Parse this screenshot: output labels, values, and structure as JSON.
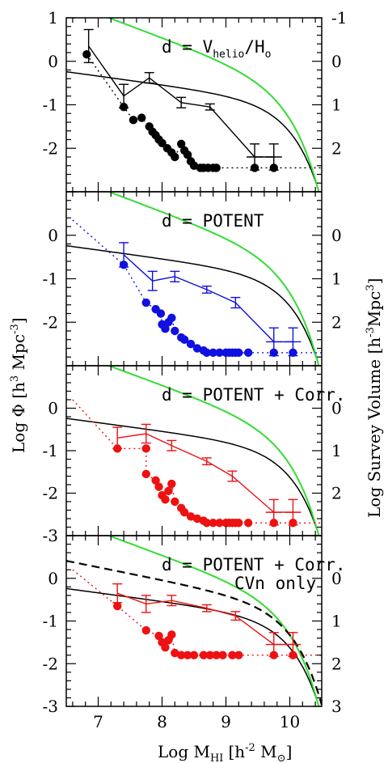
{
  "figure": {
    "xlabel": "Log M",
    "xlabel_sub": "HI",
    "xlabel_unit": "[h",
    "xlabel_unit_sup": "-2",
    "xlabel_unit_end": " M",
    "xlabel_sun_sub": "⊙",
    "xlabel_close": "]",
    "ylabel_left": "Log Φ [h",
    "ylabel_left_sup1": "3",
    "ylabel_left_mid": " Mpc",
    "ylabel_left_sup2": "-3",
    "ylabel_left_close": "]",
    "ylabel_right": "Log Survey Volume   [h",
    "ylabel_right_sup1": "-3",
    "ylabel_right_mid": "Mpc",
    "ylabel_right_sup2": "3",
    "ylabel_right_close": "]",
    "x_ticks": [
      "7",
      "8",
      "9",
      "10"
    ]
  },
  "colors": {
    "schechter_green": "#33dd33",
    "reference_black": "#000000",
    "panel1": "#000000",
    "panel2": "#1010e0",
    "panel3": "#ee1111",
    "panel4": "#ee1111"
  },
  "chart_data": [
    {
      "type": "line",
      "label_main": "d = V",
      "label_sub": "helio",
      "label_mid": "/H",
      "label_sub2": "o",
      "label_line2": "",
      "xlim": [
        6.5,
        10.5
      ],
      "ylim": [
        -3,
        1
      ],
      "y_ticks_left": [
        "1",
        "0",
        "-1",
        "-2"
      ],
      "y_ticks_right": [
        "-1",
        "0",
        "1",
        "2"
      ],
      "phi_points": [
        {
          "x": 6.85,
          "y": 0.35,
          "err": 0.38
        },
        {
          "x": 7.4,
          "y": -0.8,
          "err": 0.27
        },
        {
          "x": 7.8,
          "y": -0.38,
          "err": 0.12
        },
        {
          "x": 8.3,
          "y": -0.95,
          "err": 0.12
        },
        {
          "x": 8.75,
          "y": -1.05,
          "err": 0.07
        },
        {
          "x": 9.45,
          "y": -2.2,
          "err": 0.3
        },
        {
          "x": 9.75,
          "y": -2.2,
          "err": 0.3
        }
      ],
      "volume_points": [
        {
          "x": 6.82,
          "y": 0.16
        },
        {
          "x": 7.4,
          "y": -1.05
        },
        {
          "x": 7.55,
          "y": -1.35
        },
        {
          "x": 7.68,
          "y": -1.3
        },
        {
          "x": 7.8,
          "y": -1.5
        },
        {
          "x": 7.85,
          "y": -1.62
        },
        {
          "x": 7.9,
          "y": -1.7
        },
        {
          "x": 7.95,
          "y": -1.8
        },
        {
          "x": 8.0,
          "y": -1.88
        },
        {
          "x": 8.08,
          "y": -2.0
        },
        {
          "x": 8.15,
          "y": -2.1
        },
        {
          "x": 8.2,
          "y": -2.2
        },
        {
          "x": 8.3,
          "y": -1.9
        },
        {
          "x": 8.35,
          "y": -2.05
        },
        {
          "x": 8.4,
          "y": -2.15
        },
        {
          "x": 8.45,
          "y": -2.3
        },
        {
          "x": 8.5,
          "y": -2.4
        },
        {
          "x": 8.6,
          "y": -2.45
        },
        {
          "x": 8.65,
          "y": -2.45
        },
        {
          "x": 8.72,
          "y": -2.45
        },
        {
          "x": 8.8,
          "y": -2.45
        },
        {
          "x": 8.85,
          "y": -2.45
        },
        {
          "x": 9.45,
          "y": -2.45
        },
        {
          "x": 9.75,
          "y": -2.45
        }
      ],
      "volume_dotted_start": {
        "x": 6.82,
        "y": 0.16
      },
      "volume_floor": -2.45,
      "dashed_curve": false
    },
    {
      "type": "line",
      "label_main": "d = POTENT",
      "label_sub": "",
      "label_mid": "",
      "label_sub2": "",
      "label_line2": "",
      "xlim": [
        6.5,
        10.5
      ],
      "ylim": [
        -3,
        1
      ],
      "y_ticks_left": [
        "0",
        "-1",
        "-2"
      ],
      "y_ticks_right": [
        "0",
        "1",
        "2"
      ],
      "phi_points": [
        {
          "x": 7.4,
          "y": -0.45,
          "err": 0.28
        },
        {
          "x": 7.85,
          "y": -1.05,
          "err": 0.22
        },
        {
          "x": 8.2,
          "y": -0.95,
          "err": 0.12
        },
        {
          "x": 8.7,
          "y": -1.25,
          "err": 0.08
        },
        {
          "x": 9.15,
          "y": -1.55,
          "err": 0.12
        },
        {
          "x": 9.75,
          "y": -2.45,
          "err": 0.32
        },
        {
          "x": 10.05,
          "y": -2.45,
          "err": 0.32
        }
      ],
      "volume_points": [
        {
          "x": 7.4,
          "y": -0.68
        },
        {
          "x": 7.75,
          "y": -1.55
        },
        {
          "x": 7.9,
          "y": -1.7
        },
        {
          "x": 7.98,
          "y": -1.8
        },
        {
          "x": 8.0,
          "y": -2.05
        },
        {
          "x": 8.05,
          "y": -2.15
        },
        {
          "x": 8.1,
          "y": -2.0
        },
        {
          "x": 8.15,
          "y": -1.9
        },
        {
          "x": 8.2,
          "y": -2.2
        },
        {
          "x": 8.3,
          "y": -2.35
        },
        {
          "x": 8.35,
          "y": -2.4
        },
        {
          "x": 8.45,
          "y": -2.5
        },
        {
          "x": 8.55,
          "y": -2.6
        },
        {
          "x": 8.65,
          "y": -2.65
        },
        {
          "x": 8.7,
          "y": -2.7
        },
        {
          "x": 8.8,
          "y": -2.7
        },
        {
          "x": 8.9,
          "y": -2.7
        },
        {
          "x": 9.0,
          "y": -2.7
        },
        {
          "x": 9.05,
          "y": -2.7
        },
        {
          "x": 9.1,
          "y": -2.7
        },
        {
          "x": 9.15,
          "y": -2.7
        },
        {
          "x": 9.2,
          "y": -2.7
        },
        {
          "x": 9.35,
          "y": -2.7
        },
        {
          "x": 9.75,
          "y": -2.7
        },
        {
          "x": 10.05,
          "y": -2.7
        }
      ],
      "volume_dotted_start": {
        "x": 6.6,
        "y": 0.35
      },
      "volume_floor": -2.7,
      "dashed_curve": false
    },
    {
      "type": "line",
      "label_main": "d = POTENT + Corr.",
      "label_sub": "",
      "label_mid": "",
      "label_sub2": "",
      "label_line2": "",
      "xlim": [
        6.5,
        10.5
      ],
      "ylim": [
        -3,
        1
      ],
      "y_ticks_left": [
        "0",
        "-1",
        "-2",
        "-3"
      ],
      "y_ticks_right": [
        "0",
        "1",
        "2"
      ],
      "phi_points": [
        {
          "x": 7.3,
          "y": -0.7,
          "err": 0.25
        },
        {
          "x": 7.75,
          "y": -0.6,
          "err": 0.22
        },
        {
          "x": 8.15,
          "y": -0.88,
          "err": 0.12
        },
        {
          "x": 8.7,
          "y": -1.25,
          "err": 0.08
        },
        {
          "x": 9.1,
          "y": -1.6,
          "err": 0.12
        },
        {
          "x": 9.75,
          "y": -2.45,
          "err": 0.3
        },
        {
          "x": 10.05,
          "y": -2.45,
          "err": 0.3
        }
      ],
      "volume_points": [
        {
          "x": 7.3,
          "y": -0.95
        },
        {
          "x": 7.75,
          "y": -0.95
        },
        {
          "x": 7.75,
          "y": -1.55
        },
        {
          "x": 7.9,
          "y": -1.7
        },
        {
          "x": 7.95,
          "y": -1.85
        },
        {
          "x": 8.0,
          "y": -2.05
        },
        {
          "x": 8.05,
          "y": -2.15
        },
        {
          "x": 8.1,
          "y": -1.95
        },
        {
          "x": 8.15,
          "y": -1.78
        },
        {
          "x": 8.2,
          "y": -2.2
        },
        {
          "x": 8.3,
          "y": -2.35
        },
        {
          "x": 8.35,
          "y": -2.45
        },
        {
          "x": 8.45,
          "y": -2.55
        },
        {
          "x": 8.55,
          "y": -2.6
        },
        {
          "x": 8.65,
          "y": -2.65
        },
        {
          "x": 8.7,
          "y": -2.7
        },
        {
          "x": 8.8,
          "y": -2.7
        },
        {
          "x": 8.9,
          "y": -2.7
        },
        {
          "x": 9.0,
          "y": -2.7
        },
        {
          "x": 9.05,
          "y": -2.7
        },
        {
          "x": 9.1,
          "y": -2.7
        },
        {
          "x": 9.15,
          "y": -2.7
        },
        {
          "x": 9.2,
          "y": -2.7
        },
        {
          "x": 9.35,
          "y": -2.7
        },
        {
          "x": 9.75,
          "y": -2.7
        },
        {
          "x": 10.05,
          "y": -2.7
        }
      ],
      "volume_dotted_start": {
        "x": 6.6,
        "y": 0.2
      },
      "volume_floor": -2.7,
      "dashed_curve": false
    },
    {
      "type": "line",
      "label_main": "d = POTENT + Corr.",
      "label_sub": "",
      "label_mid": "",
      "label_sub2": "",
      "label_line2": "CVn only",
      "xlim": [
        6.5,
        10.5
      ],
      "ylim": [
        -3,
        1
      ],
      "y_ticks_left": [
        "0",
        "-1",
        "-2",
        "-3"
      ],
      "y_ticks_right": [
        "0",
        "1",
        "2",
        "3"
      ],
      "phi_points": [
        {
          "x": 7.3,
          "y": -0.35,
          "err": 0.22
        },
        {
          "x": 7.75,
          "y": -0.6,
          "err": 0.2
        },
        {
          "x": 8.15,
          "y": -0.52,
          "err": 0.12
        },
        {
          "x": 8.7,
          "y": -0.7,
          "err": 0.08
        },
        {
          "x": 9.15,
          "y": -0.88,
          "err": 0.1
        },
        {
          "x": 9.75,
          "y": -1.55,
          "err": 0.28
        },
        {
          "x": 10.05,
          "y": -1.55,
          "err": 0.28
        }
      ],
      "volume_points": [
        {
          "x": 7.3,
          "y": -0.65
        },
        {
          "x": 7.75,
          "y": -1.22
        },
        {
          "x": 7.95,
          "y": -1.35
        },
        {
          "x": 8.0,
          "y": -1.5
        },
        {
          "x": 8.05,
          "y": -1.62
        },
        {
          "x": 8.1,
          "y": -1.45
        },
        {
          "x": 8.15,
          "y": -1.32
        },
        {
          "x": 8.2,
          "y": -1.75
        },
        {
          "x": 8.3,
          "y": -1.8
        },
        {
          "x": 8.4,
          "y": -1.8
        },
        {
          "x": 8.5,
          "y": -1.8
        },
        {
          "x": 8.65,
          "y": -1.8
        },
        {
          "x": 8.75,
          "y": -1.8
        },
        {
          "x": 8.85,
          "y": -1.8
        },
        {
          "x": 8.95,
          "y": -1.8
        },
        {
          "x": 9.1,
          "y": -1.8
        },
        {
          "x": 9.2,
          "y": -1.8
        },
        {
          "x": 9.75,
          "y": -1.8
        },
        {
          "x": 10.05,
          "y": -1.8
        }
      ],
      "volume_dotted_start": {
        "x": 6.6,
        "y": 0.2
      },
      "volume_floor": -1.8,
      "dashed_curve": true
    }
  ]
}
